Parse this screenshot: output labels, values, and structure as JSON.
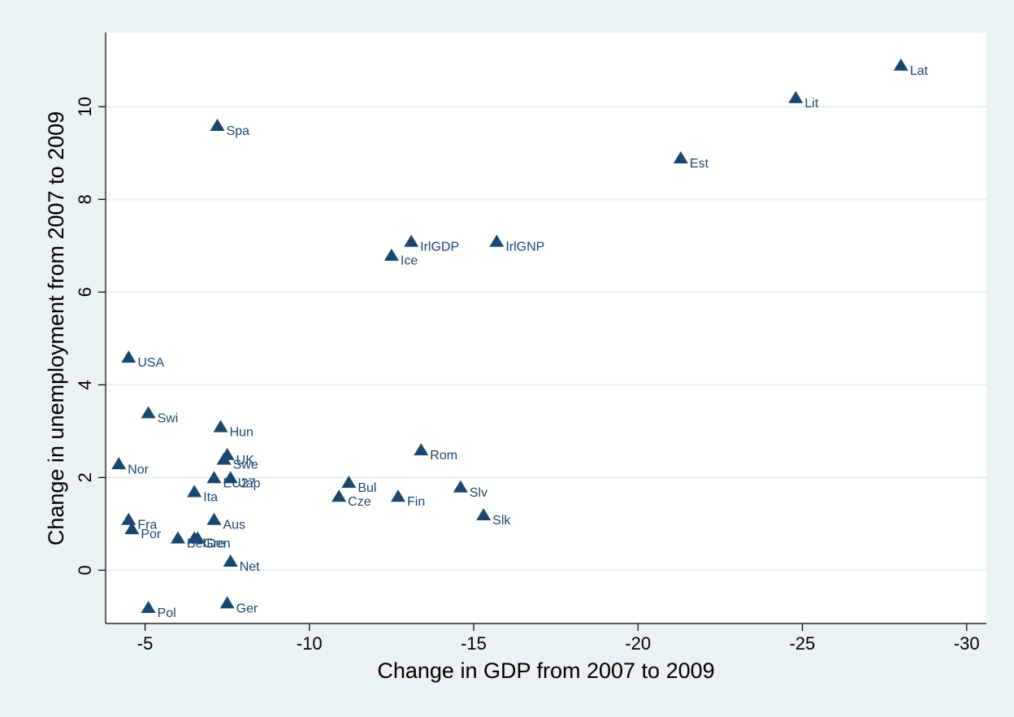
{
  "chart_data": {
    "type": "scatter",
    "title": "",
    "xlabel": "Change in GDP from 2007 to 2009",
    "ylabel": "Change in unemployment from 2007 to 2009",
    "xlim": [
      -3.8,
      -30.6
    ],
    "ylim": [
      -1.15,
      11.6
    ],
    "x_reversed": true,
    "x_ticks": [
      -5,
      -10,
      -15,
      -20,
      -25,
      -30
    ],
    "y_ticks": [
      0,
      2,
      4,
      6,
      8,
      10
    ],
    "grid": "horizontal",
    "legend": "none",
    "marker": "triangle",
    "colors": {
      "background": "#eaf2f3",
      "plot_area": "#ffffff",
      "marker": "#1a476f",
      "grid": "#eaf2f3",
      "axis": "#000000"
    },
    "points": [
      {
        "label": "Lat",
        "x": -28.0,
        "y": 10.9
      },
      {
        "label": "Lit",
        "x": -24.8,
        "y": 10.2
      },
      {
        "label": "Spa",
        "x": -7.2,
        "y": 9.6
      },
      {
        "label": "Est",
        "x": -21.3,
        "y": 8.9
      },
      {
        "label": "IrlGDP",
        "x": -13.1,
        "y": 7.1
      },
      {
        "label": "IrlGNP",
        "x": -15.7,
        "y": 7.1
      },
      {
        "label": "Ice",
        "x": -12.5,
        "y": 6.8
      },
      {
        "label": "USA",
        "x": -4.5,
        "y": 4.6
      },
      {
        "label": "Swi",
        "x": -5.1,
        "y": 3.4
      },
      {
        "label": "Hun",
        "x": -7.3,
        "y": 3.1
      },
      {
        "label": "Rom",
        "x": -13.4,
        "y": 2.6
      },
      {
        "label": "UK",
        "x": -7.5,
        "y": 2.5
      },
      {
        "label": "Swe",
        "x": -7.4,
        "y": 2.4
      },
      {
        "label": "Nor",
        "x": -4.2,
        "y": 2.3
      },
      {
        "label": "EU27",
        "x": -7.1,
        "y": 2.0
      },
      {
        "label": "Jap",
        "x": -7.6,
        "y": 2.0
      },
      {
        "label": "Bul",
        "x": -11.2,
        "y": 1.9
      },
      {
        "label": "Slv",
        "x": -14.6,
        "y": 1.8
      },
      {
        "label": "Ita",
        "x": -6.5,
        "y": 1.7
      },
      {
        "label": "Cze",
        "x": -10.9,
        "y": 1.6
      },
      {
        "label": "Fin",
        "x": -12.7,
        "y": 1.6
      },
      {
        "label": "Slk",
        "x": -15.3,
        "y": 1.2
      },
      {
        "label": "Fra",
        "x": -4.5,
        "y": 1.1
      },
      {
        "label": "Aus",
        "x": -7.1,
        "y": 1.1
      },
      {
        "label": "Por",
        "x": -4.6,
        "y": 0.9
      },
      {
        "label": "Bel",
        "x": -6.0,
        "y": 0.7
      },
      {
        "label": "Gre",
        "x": -6.5,
        "y": 0.7
      },
      {
        "label": "Den",
        "x": -6.6,
        "y": 0.7
      },
      {
        "label": "Net",
        "x": -7.6,
        "y": 0.2
      },
      {
        "label": "Ger",
        "x": -7.5,
        "y": -0.7
      },
      {
        "label": "Pol",
        "x": -5.1,
        "y": -0.8
      }
    ]
  }
}
